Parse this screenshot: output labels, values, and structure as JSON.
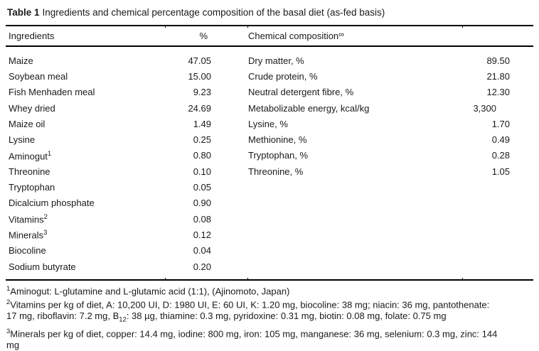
{
  "caption": {
    "label": "Table 1",
    "text": "Ingredients and chemical percentage composition of the basal diet (as-fed basis)"
  },
  "table": {
    "header": {
      "ingredients": "Ingredients",
      "percent": "%",
      "chemical": "Chemical composition",
      "chemical_sup": "∞"
    },
    "ingredients": [
      {
        "name": "Maize",
        "value": "47.05"
      },
      {
        "name": "Soybean meal",
        "value": "15.00"
      },
      {
        "name": "Fish Menhaden meal",
        "value": "9.23"
      },
      {
        "name": "Whey dried",
        "value": "24.69"
      },
      {
        "name": "Maize oil",
        "value": "1.49"
      },
      {
        "name": "Lysine",
        "value": "0.25"
      },
      {
        "name": "Aminogut",
        "sup": "1",
        "value": "0.80"
      },
      {
        "name": "Threonine",
        "value": "0.10"
      },
      {
        "name": "Tryptophan",
        "value": "0.05"
      },
      {
        "name": "Dicalcium phosphate",
        "value": "0.90"
      },
      {
        "name": "Vitamins",
        "sup": "2",
        "value": "0.08"
      },
      {
        "name": "Minerals",
        "sup": "3",
        "value": "0.12"
      },
      {
        "name": "Biocoline",
        "value": "0.04"
      },
      {
        "name": "Sodium butyrate",
        "value": "0.20"
      }
    ],
    "chemical": [
      {
        "name": "Dry matter, %",
        "value": "89.50"
      },
      {
        "name": "Crude protein, %",
        "value": "21.80"
      },
      {
        "name": "Neutral detergent fibre, %",
        "value": "12.30"
      },
      {
        "name": "Metabolizable energy, kcal/kg",
        "value": "3,300"
      },
      {
        "name": "Lysine, %",
        "value": "1.70"
      },
      {
        "name": "Methionine, %",
        "value": "0.49"
      },
      {
        "name": "Tryptophan, %",
        "value": "0.28"
      },
      {
        "name": "Threonine, %",
        "value": "1.05"
      }
    ]
  },
  "footnotes": [
    {
      "marker": "1",
      "parts": [
        {
          "t": "Aminogut: L-glutamine and L-glutamic acid (1:1), (Ajinomoto, Japan)"
        }
      ]
    },
    {
      "marker": "2",
      "parts": [
        {
          "t": "Vitamins per kg of diet, A: 10,200 UI, D: 1980 UI, E: 60 UI, K: 1.20 mg, biocoline: 38 mg; niacin: 36 mg, pantothenate:"
        },
        {
          "br": true
        },
        {
          "t": "17 mg, riboflavin: 7.2 mg, B"
        },
        {
          "sub": "12"
        },
        {
          "t": ": 38 µg, thiamine: 0.3 mg, pyridoxine: 0.31 mg, biotin: 0.08 mg, folate: 0.75 mg"
        }
      ]
    },
    {
      "marker": "3",
      "parts": [
        {
          "t": "Minerals per kg of diet, copper: 14.4 mg, iodine: 800 mg, iron: 105 mg, manganese: 36 mg, selenium: 0.3 mg, zinc: 144"
        },
        {
          "br": true
        },
        {
          "t": "mg"
        }
      ]
    }
  ]
}
